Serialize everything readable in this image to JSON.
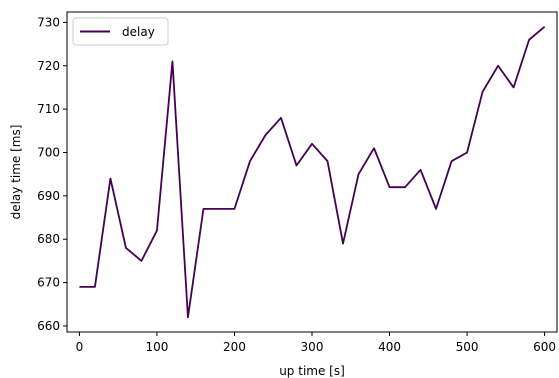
{
  "chart_data": {
    "type": "line",
    "xlabel": "up time [s]",
    "ylabel": "delay time [ms]",
    "xlim": [
      -16,
      616
    ],
    "ylim": [
      658.6,
      732.4
    ],
    "xticks": [
      0,
      100,
      200,
      300,
      400,
      500,
      600
    ],
    "yticks": [
      660,
      670,
      680,
      690,
      700,
      710,
      720,
      730
    ],
    "grid": false,
    "legend_position": "top-left",
    "series": [
      {
        "name": "delay",
        "color": "#440154",
        "x": [
          0,
          20,
          40,
          60,
          80,
          100,
          120,
          140,
          160,
          180,
          200,
          220,
          240,
          260,
          280,
          300,
          320,
          340,
          360,
          380,
          400,
          420,
          440,
          460,
          480,
          500,
          520,
          540,
          560,
          580,
          600
        ],
        "y": [
          669,
          669,
          694,
          678,
          675,
          682,
          721,
          662,
          687,
          687,
          687,
          698,
          704,
          708,
          697,
          702,
          698,
          679,
          695,
          701,
          692,
          692,
          696,
          687,
          698,
          700,
          714,
          720,
          715,
          726,
          729
        ]
      }
    ]
  }
}
